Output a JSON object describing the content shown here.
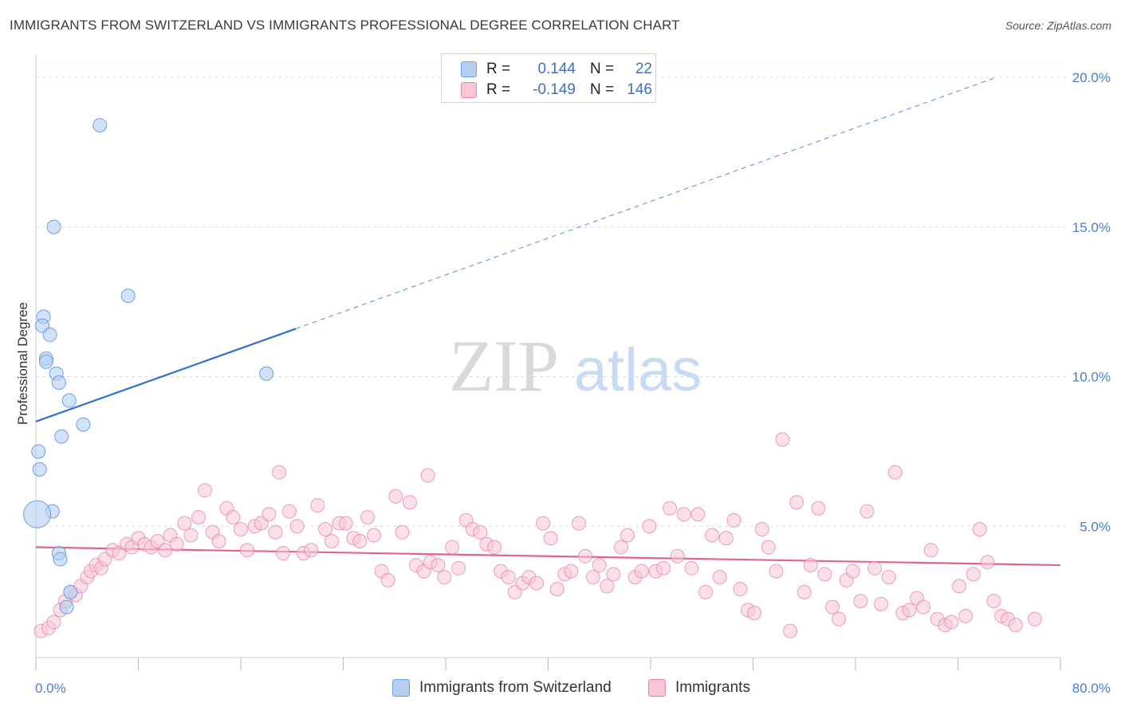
{
  "title": "IMMIGRANTS FROM SWITZERLAND VS IMMIGRANTS PROFESSIONAL DEGREE CORRELATION CHART",
  "source": "Source: ZipAtlas.com",
  "watermark": {
    "zip": "ZIP",
    "atlas": "atlas"
  },
  "legend": {
    "rows": [
      {
        "r_label": "R =",
        "r_value": "0.144",
        "n_label": "N =",
        "n_value": "22",
        "color": "#a9c8f2"
      },
      {
        "r_label": "R =",
        "r_value": "-0.149",
        "n_label": "N =",
        "n_value": "146",
        "color": "#f6b8cc"
      }
    ]
  },
  "bottom_legend": {
    "series_a": "Immigrants from Switzerland",
    "series_b": "Immigrants"
  },
  "chart_data": {
    "type": "scatter",
    "xlabel": "",
    "ylabel": "Professional Degree",
    "xlim": [
      0,
      80
    ],
    "ylim": [
      0,
      20
    ],
    "x_tick_labels": [
      "0.0%",
      "80.0%"
    ],
    "y_tick_labels": [
      "5.0%",
      "10.0%",
      "15.0%",
      "20.0%"
    ],
    "y_ticks": [
      5,
      10,
      15,
      20
    ],
    "grid": "horizontal dashed",
    "legend_position": "top-center",
    "colors": {
      "swiss": "#6f9fe0",
      "swiss_fill": "#b4cff3",
      "swiss_line": "#2f6fd0",
      "imm": "#ea84a6",
      "imm_fill": "#f8c6d6",
      "imm_line": "#e0648e"
    },
    "series": [
      {
        "name": "Immigrants from Switzerland",
        "x": [
          5.0,
          1.4,
          0.6,
          0.5,
          0.8,
          0.8,
          1.6,
          1.8,
          2.6,
          3.7,
          1.1,
          2.0,
          0.2,
          0.3,
          7.2,
          18.0,
          1.3,
          1.8,
          1.9,
          2.7,
          2.4,
          0.1
        ],
        "y": [
          18.4,
          15.0,
          12.0,
          11.7,
          10.6,
          10.5,
          10.1,
          9.8,
          9.2,
          8.4,
          11.4,
          8.0,
          7.5,
          6.9,
          12.7,
          10.1,
          5.5,
          4.1,
          3.9,
          2.8,
          2.3,
          5.4
        ],
        "trend": {
          "x": [
            0,
            20.3
          ],
          "y": [
            8.5,
            11.6
          ],
          "dashed_extension": {
            "x": [
              20.3,
              75
            ],
            "y": [
              11.6,
              20.0
            ]
          }
        }
      },
      {
        "name": "Immigrants",
        "x": [
          0.4,
          1.0,
          1.4,
          1.9,
          2.3,
          2.7,
          3.1,
          3.5,
          4.0,
          4.3,
          4.7,
          5.1,
          5.4,
          6.0,
          6.5,
          7.1,
          7.5,
          8.0,
          8.5,
          9.0,
          9.5,
          10.1,
          10.5,
          11.0,
          11.6,
          12.1,
          12.7,
          13.2,
          13.8,
          14.3,
          14.9,
          15.4,
          16.0,
          16.5,
          17.1,
          17.6,
          18.2,
          18.7,
          19.3,
          19.8,
          20.4,
          20.9,
          21.5,
          22.0,
          22.6,
          23.1,
          23.7,
          24.2,
          24.8,
          25.3,
          25.9,
          26.4,
          27.0,
          27.5,
          28.1,
          28.6,
          29.2,
          29.7,
          30.3,
          30.8,
          31.4,
          31.9,
          32.5,
          33.0,
          33.6,
          34.1,
          34.7,
          35.2,
          35.8,
          36.3,
          36.9,
          37.4,
          38.0,
          38.5,
          39.1,
          39.6,
          40.2,
          40.7,
          41.3,
          41.8,
          42.4,
          42.9,
          43.5,
          44.0,
          44.6,
          45.1,
          45.7,
          46.2,
          46.8,
          47.3,
          47.9,
          48.4,
          49.0,
          49.5,
          50.1,
          50.6,
          51.2,
          51.7,
          52.3,
          52.8,
          53.4,
          53.9,
          54.5,
          55.0,
          55.6,
          56.1,
          56.7,
          57.2,
          57.8,
          58.3,
          58.9,
          59.4,
          60.0,
          60.5,
          61.1,
          61.6,
          62.2,
          62.7,
          63.3,
          63.8,
          64.4,
          64.9,
          65.5,
          66.0,
          66.6,
          67.1,
          67.7,
          68.2,
          68.8,
          69.3,
          69.9,
          70.4,
          71.0,
          71.5,
          72.1,
          72.6,
          73.2,
          73.7,
          74.3,
          74.8,
          75.4,
          75.9,
          76.5,
          78.0,
          30.6,
          19.0
        ],
        "y": [
          1.5,
          1.6,
          1.8,
          2.2,
          2.5,
          2.8,
          2.7,
          3.0,
          3.3,
          3.5,
          3.7,
          3.6,
          3.9,
          4.2,
          4.1,
          4.4,
          4.3,
          4.6,
          4.4,
          4.3,
          4.5,
          4.2,
          4.7,
          4.4,
          5.1,
          4.7,
          5.3,
          6.2,
          4.8,
          4.5,
          5.6,
          5.3,
          4.9,
          4.2,
          5.0,
          5.1,
          5.4,
          4.8,
          4.1,
          5.5,
          5.0,
          4.1,
          4.2,
          5.7,
          4.9,
          4.5,
          5.1,
          5.1,
          4.6,
          4.5,
          5.3,
          4.7,
          3.5,
          3.2,
          6.0,
          4.8,
          5.8,
          3.7,
          3.5,
          3.8,
          3.7,
          3.3,
          4.3,
          3.6,
          5.2,
          4.9,
          4.8,
          4.4,
          4.3,
          3.5,
          3.3,
          2.8,
          3.1,
          3.3,
          3.1,
          5.1,
          4.6,
          2.9,
          3.4,
          3.5,
          5.1,
          4.0,
          3.3,
          3.7,
          3.0,
          3.4,
          4.3,
          4.7,
          3.3,
          3.5,
          5.0,
          3.5,
          3.6,
          5.6,
          4.0,
          5.4,
          3.6,
          5.4,
          2.8,
          4.7,
          3.3,
          4.6,
          5.2,
          2.9,
          2.2,
          2.1,
          4.9,
          4.3,
          3.5,
          7.9,
          1.5,
          5.8,
          2.8,
          3.7,
          5.6,
          3.4,
          2.3,
          1.9,
          3.2,
          3.5,
          2.5,
          5.5,
          3.6,
          2.4,
          3.3,
          6.8,
          2.1,
          2.2,
          2.6,
          2.3,
          4.2,
          1.9,
          1.7,
          1.8,
          3.0,
          2.0,
          3.4,
          4.9,
          3.8,
          2.5,
          2.0,
          1.9,
          1.7,
          1.9,
          6.7,
          6.8
        ],
        "trend": {
          "x": [
            0,
            80
          ],
          "y": [
            4.3,
            3.7
          ]
        }
      }
    ]
  }
}
